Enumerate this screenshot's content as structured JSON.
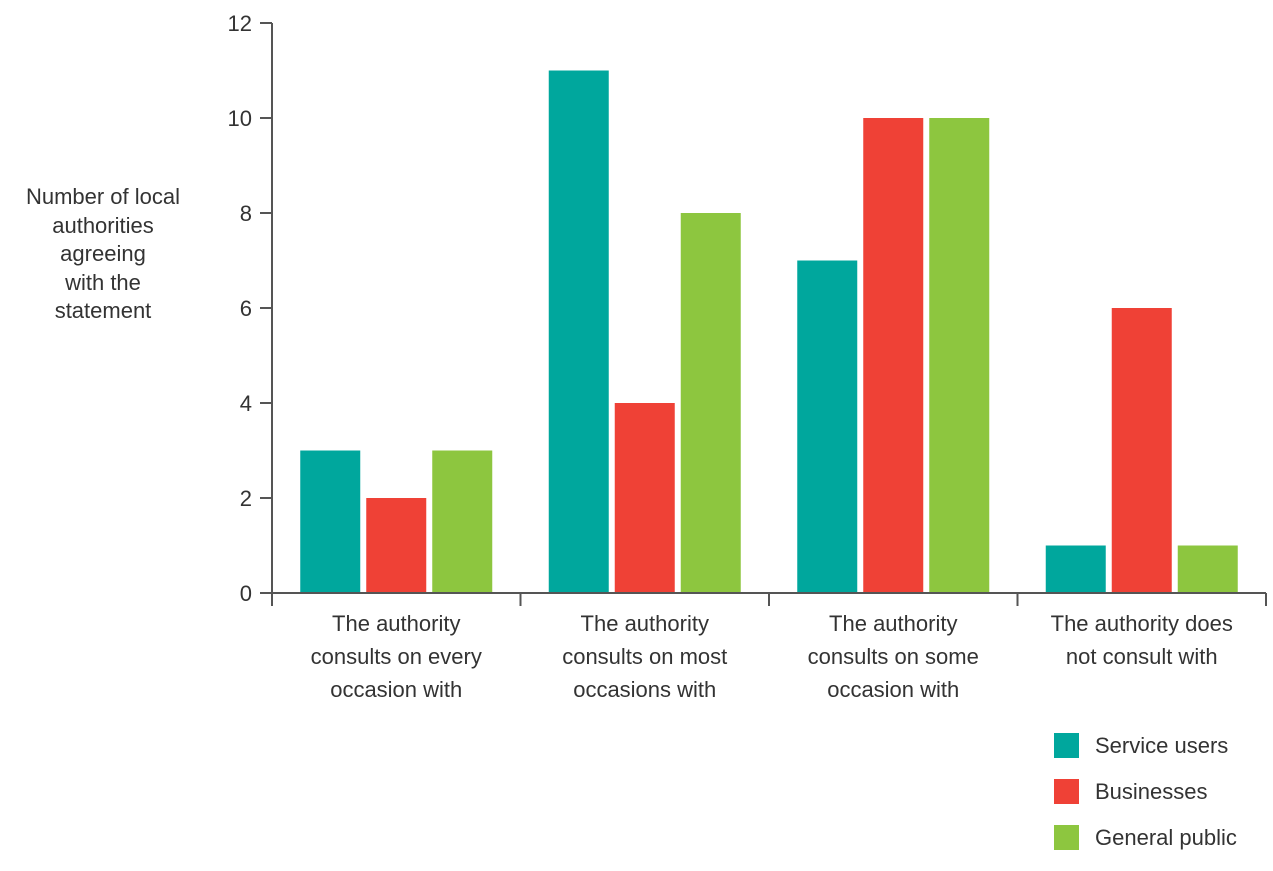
{
  "chart_data": {
    "type": "bar",
    "ylabel_lines": [
      "Number of local",
      "authorities",
      "agreeing",
      "with the",
      "statement"
    ],
    "xlabel": "",
    "ylim": [
      0,
      12
    ],
    "yticks": [
      0,
      2,
      4,
      6,
      8,
      10,
      12
    ],
    "grid": false,
    "legend_position": "bottom-right",
    "categories": [
      [
        "The authority",
        "consults on every",
        "occasion with"
      ],
      [
        "The authority",
        "consults on most",
        "occasions with"
      ],
      [
        "The authority",
        "consults on some",
        "occasion with"
      ],
      [
        "The authority does",
        "not consult with"
      ]
    ],
    "series": [
      {
        "name": "Service users",
        "color": "#00a79d",
        "values": [
          3,
          11,
          7,
          1
        ]
      },
      {
        "name": "Businesses",
        "color": "#ef4136",
        "values": [
          2,
          4,
          10,
          6
        ]
      },
      {
        "name": "General public",
        "color": "#8dc63f",
        "values": [
          3,
          8,
          10,
          1
        ]
      }
    ]
  }
}
